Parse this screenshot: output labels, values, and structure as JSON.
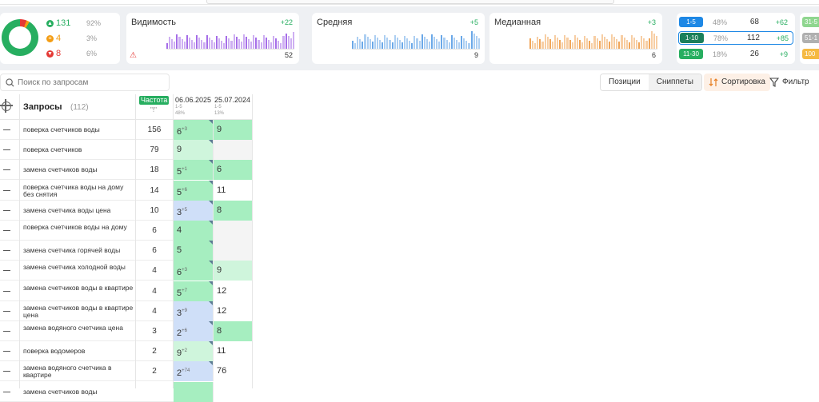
{
  "colors": {
    "green": "#27ae60",
    "orange": "#f39c12",
    "red": "#e53935",
    "blue": "#1e88e5"
  },
  "summary": {
    "stats": [
      {
        "icon": "arrow-up-icon",
        "color": "#27ae60",
        "value": "131",
        "pct": "92%"
      },
      {
        "icon": "equal-icon",
        "color": "#f39c12",
        "value": "4",
        "pct": "3%"
      },
      {
        "icon": "arrow-down-icon",
        "color": "#e53935",
        "value": "8",
        "pct": "6%"
      }
    ],
    "metrics": [
      {
        "title": "Видимость",
        "delta": "+22",
        "value": "52",
        "color": "#a66ee8"
      },
      {
        "title": "Средняя",
        "delta": "+5",
        "value": "9",
        "color": "#6aa8e8"
      },
      {
        "title": "Медианная",
        "delta": "+3",
        "value": "6",
        "color": "#f0a65a"
      }
    ],
    "ranges": [
      {
        "label": "1-5",
        "color": "#1e88e5",
        "pct": "48%",
        "value": "68",
        "delta": "+62"
      },
      {
        "label": "1-10",
        "color": "#1a7f5a",
        "pct": "78%",
        "value": "112",
        "delta": "+85"
      },
      {
        "label": "11-30",
        "color": "#27ae60",
        "pct": "18%",
        "value": "26",
        "delta": "+9"
      }
    ],
    "ranges2": [
      {
        "label": "31-5",
        "color": "#8fd68f"
      },
      {
        "label": "51-1",
        "color": "#b0b0b0"
      },
      {
        "label": "100",
        "color": "#f5b942"
      }
    ]
  },
  "toolbar": {
    "search_placeholder": "Поиск по запросам",
    "tab_positions": "Позиции",
    "tab_snippets": "Сниппеты",
    "sort_label": "Сортировка",
    "filter_label": "Фильтр"
  },
  "table": {
    "title": "Запросы",
    "count": "(112)",
    "freq_label": "Частота",
    "freq_sub": "\"!\"",
    "dates": [
      {
        "date": "06.06.2025",
        "range": "1-5",
        "pct": "48%"
      },
      {
        "date": "25.07.2024",
        "range": "1-5",
        "pct": "13%"
      }
    ],
    "rows": [
      {
        "q": "поверка счетчиков воды",
        "f": "156",
        "p1": "6",
        "d1": "+3",
        "p2": "9",
        "c1": "#a6eec0",
        "c2": "#a6eec0"
      },
      {
        "q": "поверка счетчиков",
        "f": "79",
        "p1": "9",
        "d1": "",
        "p2": "",
        "c1": "#cff5dc",
        "c2": "#f4f4f4"
      },
      {
        "q": "замена счетчиков воды",
        "f": "18",
        "p1": "5",
        "d1": "+1",
        "p2": "6",
        "c1": "#a6eec0",
        "c2": "#a6eec0"
      },
      {
        "q": "поверка счетчика воды на дому без снятия",
        "f": "14",
        "p1": "5",
        "d1": "+6",
        "p2": "11",
        "c1": "#a6eec0",
        "c2": "#ffffff"
      },
      {
        "q": "замена счетчика воды цена",
        "f": "10",
        "p1": "3",
        "d1": "+5",
        "p2": "8",
        "c1": "#cfdff8",
        "c2": "#a6eec0"
      },
      {
        "q": "поверка счетчиков воды на дому",
        "f": "6",
        "p1": "4",
        "d1": "",
        "p2": "",
        "c1": "#a6eec0",
        "c2": "#f4f4f4"
      },
      {
        "q": "замена счетчика горячей воды",
        "f": "6",
        "p1": "5",
        "d1": "",
        "p2": "",
        "c1": "#a6eec0",
        "c2": "#f4f4f4"
      },
      {
        "q": "замена счетчика холодной воды",
        "f": "4",
        "p1": "6",
        "d1": "+3",
        "p2": "9",
        "c1": "#a6eec0",
        "c2": "#cff5dc"
      },
      {
        "q": "замена счетчиков воды в квартире",
        "f": "4",
        "p1": "5",
        "d1": "+7",
        "p2": "12",
        "c1": "#a6eec0",
        "c2": "#ffffff"
      },
      {
        "q": "замена счетчиков воды в квартире цена",
        "f": "4",
        "p1": "3",
        "d1": "+9",
        "p2": "12",
        "c1": "#cfdff8",
        "c2": "#ffffff"
      },
      {
        "q": "замена водяного счетчика цена",
        "f": "3",
        "p1": "2",
        "d1": "+6",
        "p2": "8",
        "c1": "#cfdff8",
        "c2": "#a6eec0"
      },
      {
        "q": "поверка водомеров",
        "f": "2",
        "p1": "9",
        "d1": "+2",
        "p2": "11",
        "c1": "#cff5dc",
        "c2": "#ffffff"
      },
      {
        "q": "замена водяного счетчика в квартире",
        "f": "2",
        "p1": "2",
        "d1": "+74",
        "p2": "76",
        "c1": "#cfdff8",
        "c2": "#ffffff"
      },
      {
        "q": "замена счетчиков воды",
        "f": "",
        "p1": "",
        "d1": "",
        "p2": "",
        "c1": "#a6eec0",
        "c2": "#ffffff"
      }
    ]
  }
}
